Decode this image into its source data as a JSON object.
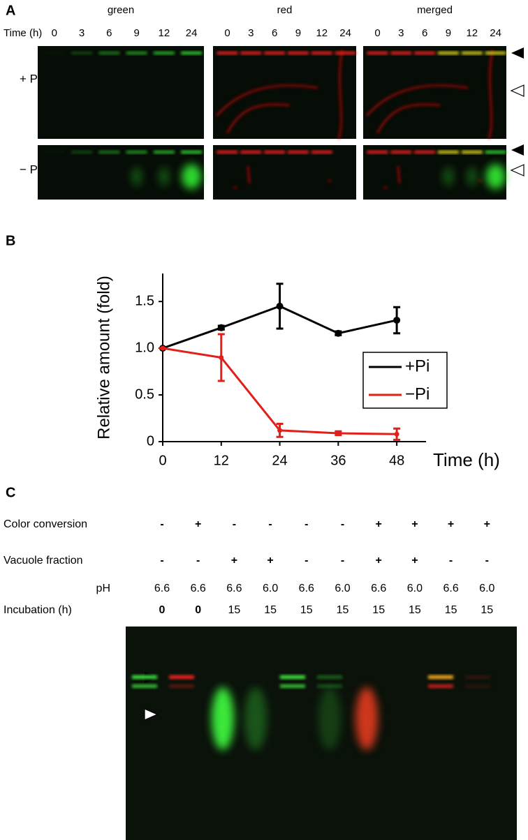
{
  "panel_a": {
    "label": "A",
    "channels": [
      "green",
      "red",
      "merged"
    ],
    "time_label": "Time (h)",
    "times": [
      "0",
      "3",
      "6",
      "9",
      "12",
      "24"
    ],
    "conditions": [
      "+ Pi",
      "− Pi"
    ]
  },
  "panel_b_label": "B",
  "chart_data": {
    "type": "line",
    "xlabel": "Time (h)",
    "ylabel": "Relative amount (fold)",
    "x": [
      0,
      12,
      24,
      36,
      48
    ],
    "xlim": [
      0,
      54
    ],
    "xticks": [
      0,
      12,
      24,
      36,
      48
    ],
    "ylim": [
      0,
      1.8
    ],
    "yticks": [
      0,
      0.5,
      {
        "value": 1,
        "label": "1.0"
      },
      1.5
    ],
    "series": [
      {
        "name": "+Pi",
        "color": "#000000",
        "values": [
          1.0,
          1.22,
          1.45,
          1.16,
          1.3
        ],
        "errors": [
          0,
          0.02,
          0.24,
          0.02,
          0.14
        ]
      },
      {
        "name": "−Pi",
        "color": "#e0201b",
        "values": [
          1.0,
          0.9,
          0.12,
          0.09,
          0.08
        ],
        "errors": [
          0,
          0.25,
          0.07,
          0.02,
          0.06
        ]
      }
    ],
    "legend": "right"
  },
  "panel_c": {
    "label": "C",
    "rows": [
      {
        "label": "Color conversion",
        "values": [
          "-",
          "+",
          "-",
          "-",
          "-",
          "-",
          "+",
          "+",
          "+",
          "+"
        ]
      },
      {
        "label": "Vacuole fraction",
        "values": [
          "-",
          "-",
          "+",
          "+",
          "-",
          "-",
          "+",
          "+",
          "-",
          "-"
        ]
      },
      {
        "label": "pH",
        "values": [
          "6.6",
          "6.6",
          "6.6",
          "6.0",
          "6.6",
          "6.0",
          "6.6",
          "6.0",
          "6.6",
          "6.0"
        ]
      },
      {
        "label": "Incubation (h)",
        "values": [
          "0",
          "0",
          "15",
          "15",
          "15",
          "15",
          "15",
          "15",
          "15",
          "15"
        ]
      }
    ]
  }
}
